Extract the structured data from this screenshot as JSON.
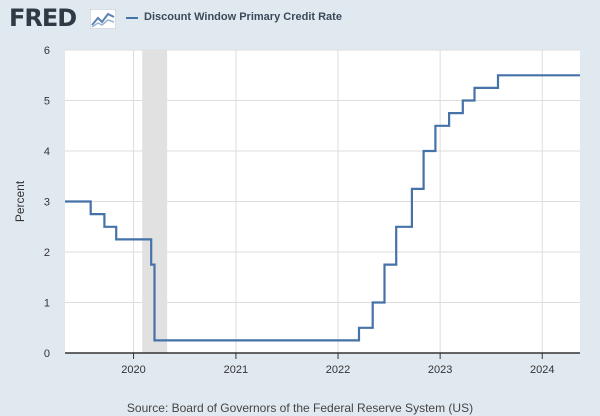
{
  "header": {
    "logo": "FRED",
    "legend_label": "Discount Window Primary Credit Rate"
  },
  "colors": {
    "line": "#4572a7",
    "recession": "#e1e1e1",
    "plot_bg": "#ffffff",
    "page_bg": "#e1e9f0"
  },
  "source": "Source: Board of Governors of the Federal Reserve System (US)",
  "chart_data": {
    "type": "line",
    "title": "Discount Window Primary Credit Rate",
    "xlabel": "",
    "ylabel": "Percent",
    "xlim": [
      "2019-05-01",
      "2024-05-15"
    ],
    "ylim": [
      0,
      6
    ],
    "y_ticks": [
      0,
      1,
      2,
      3,
      4,
      5,
      6
    ],
    "x_ticks": [
      "2020",
      "2021",
      "2022",
      "2023",
      "2024"
    ],
    "grid": true,
    "recessions": [
      {
        "start": "2020-02-01",
        "end": "2020-04-30"
      }
    ],
    "series": [
      {
        "name": "Discount Window Primary Credit Rate",
        "step": true,
        "points": [
          [
            "2019-05-01",
            3.0
          ],
          [
            "2019-08-01",
            2.75
          ],
          [
            "2019-09-19",
            2.5
          ],
          [
            "2019-10-31",
            2.25
          ],
          [
            "2020-03-04",
            1.75
          ],
          [
            "2020-03-16",
            0.25
          ],
          [
            "2022-03-17",
            0.5
          ],
          [
            "2022-05-05",
            1.0
          ],
          [
            "2022-06-16",
            1.75
          ],
          [
            "2022-07-28",
            2.5
          ],
          [
            "2022-09-22",
            3.25
          ],
          [
            "2022-11-03",
            4.0
          ],
          [
            "2022-12-15",
            4.5
          ],
          [
            "2023-02-02",
            4.75
          ],
          [
            "2023-03-23",
            5.0
          ],
          [
            "2023-05-04",
            5.25
          ],
          [
            "2023-07-27",
            5.5
          ],
          [
            "2024-05-15",
            5.5
          ]
        ]
      }
    ]
  }
}
